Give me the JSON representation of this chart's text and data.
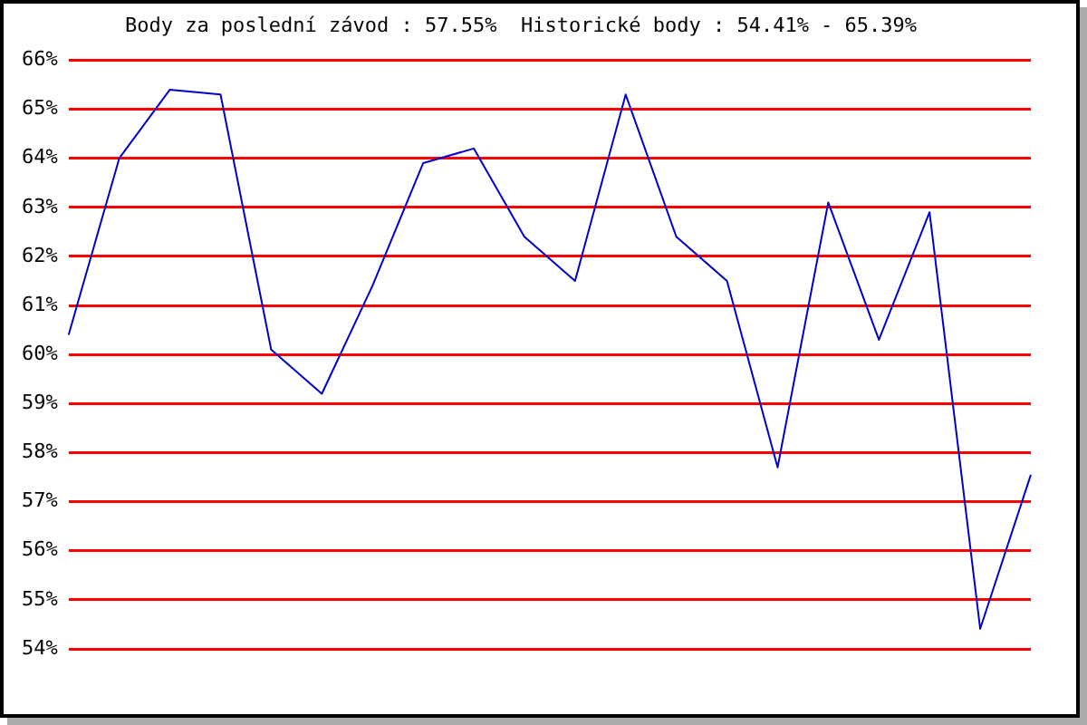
{
  "chart_data": {
    "type": "line",
    "title": "Body za poslední závod : 57.55%  Historické body : 54.41% - 65.39%",
    "categories": [
      null,
      null,
      null,
      null,
      null,
      null,
      null,
      null,
      null,
      null,
      null,
      null,
      null,
      null,
      null,
      null,
      null,
      null,
      null,
      null
    ],
    "series": [
      {
        "color": "#0000cc",
        "values": [
          60.4,
          64.0,
          65.4,
          65.3,
          60.1,
          59.2,
          61.4,
          63.9,
          64.2,
          62.4,
          61.5,
          65.3,
          62.4,
          61.5,
          57.7,
          63.1,
          60.3,
          62.9,
          54.41,
          57.55
        ]
      }
    ],
    "ylim": [
      54,
      66
    ],
    "yticks": [
      {
        "value": 54,
        "label": "54%"
      },
      {
        "value": 55,
        "label": "55%"
      },
      {
        "value": 56,
        "label": "56%"
      },
      {
        "value": 57,
        "label": "57%"
      },
      {
        "value": 58,
        "label": "58%"
      },
      {
        "value": 59,
        "label": "59%"
      },
      {
        "value": 60,
        "label": "60%"
      },
      {
        "value": 61,
        "label": "61%"
      },
      {
        "value": 62,
        "label": "62%"
      },
      {
        "value": 63,
        "label": "63%"
      },
      {
        "value": 64,
        "label": "64%"
      },
      {
        "value": 65,
        "label": "65%"
      },
      {
        "value": 66,
        "label": "66%"
      }
    ],
    "grid": "y",
    "tick_labels": "y",
    "marker": "none",
    "legend": false
  }
}
